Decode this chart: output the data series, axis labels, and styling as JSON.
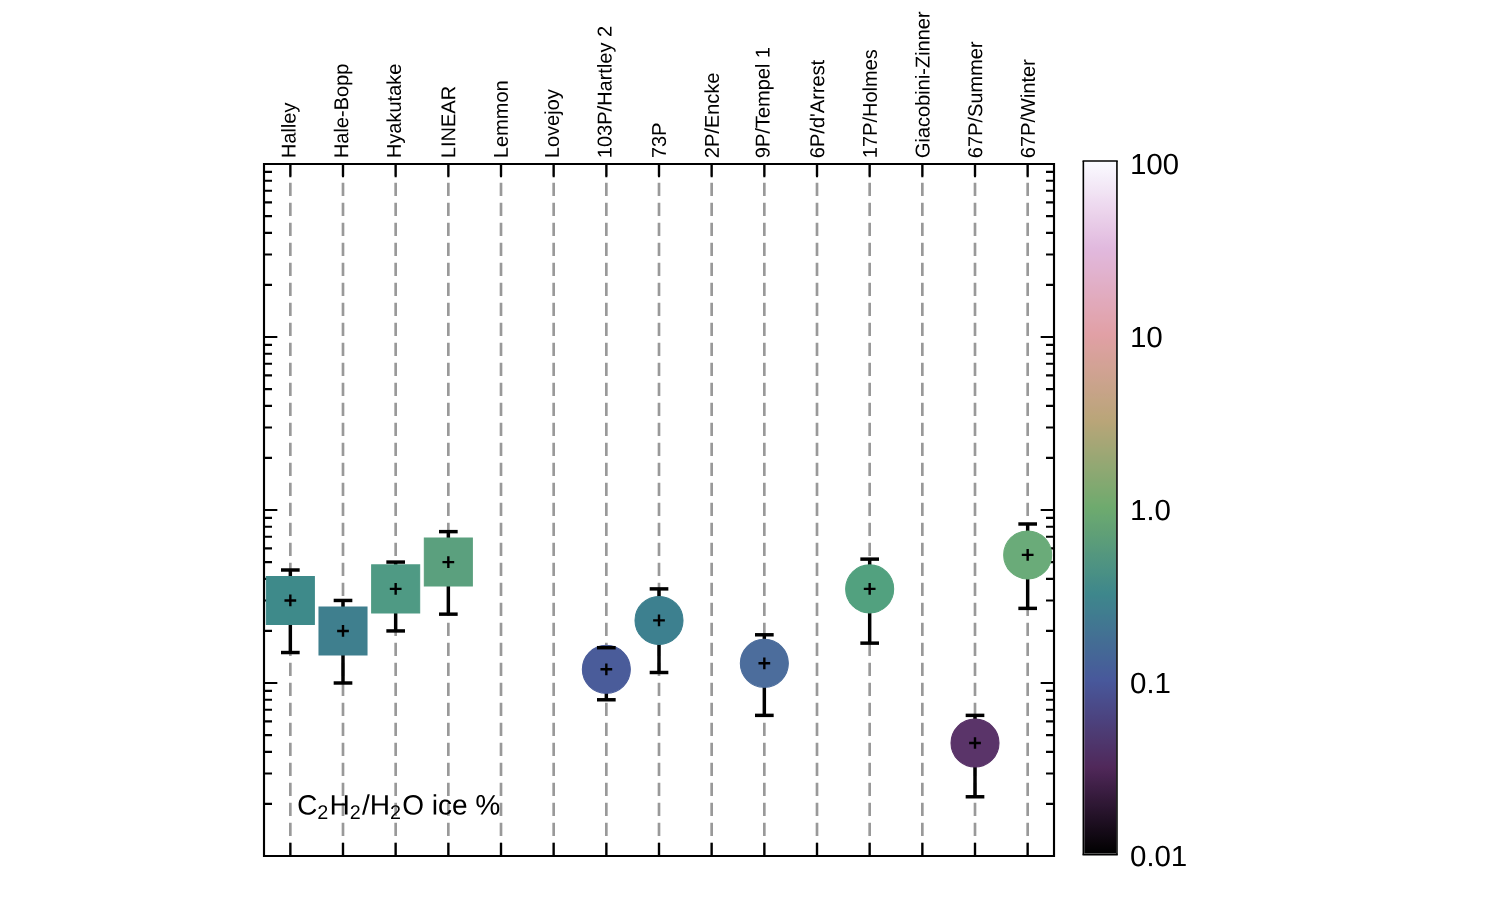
{
  "chart_data": {
    "type": "scatter",
    "categories": [
      "Halley",
      "Hale-Bopp",
      "Hyakutake",
      "LINEAR",
      "Lemmon",
      "Lovejoy",
      "103P/Hartley 2",
      "73P",
      "2P/Encke",
      "9P/Tempel 1",
      "6P/d'Arrest",
      "17P/Holmes",
      "Giacobini-Zinner",
      "67P/Summer",
      "67P/Winter"
    ],
    "y2lim": [
      0.01,
      100
    ],
    "y2ticks": [
      0.01,
      0.1,
      {
        "value": 1,
        "label": "1.0"
      },
      10,
      100
    ],
    "log": "y2",
    "grid": "x",
    "annotations": [
      "C$_{2}$H$_{2}$/H$_{2}$O ice %"
    ],
    "series": [
      {
        "marker": "square",
        "axis": "y2",
        "values": [
          0.3,
          0.2,
          0.35,
          0.5,
          null,
          null,
          null,
          null,
          null,
          null,
          null,
          null,
          null,
          null,
          null
        ],
        "colors": [
          "#3e8a8a",
          "#3f7f8e",
          "#4f9a84",
          "#5ba07e",
          null,
          null,
          null,
          null,
          null,
          null,
          null,
          null,
          null,
          null,
          null
        ],
        "errors": [
          [
            0.15,
            0.45
          ],
          [
            0.1,
            0.3
          ],
          [
            0.2,
            0.5
          ],
          [
            0.25,
            0.75
          ],
          null,
          null,
          null,
          null,
          null,
          null,
          null,
          null,
          null,
          null,
          null
        ]
      },
      {
        "marker": "circle",
        "axis": "y2",
        "values": [
          null,
          null,
          null,
          null,
          null,
          null,
          0.12,
          0.23,
          null,
          0.13,
          null,
          0.35,
          null,
          0.045,
          0.55
        ],
        "colors": [
          null,
          null,
          null,
          null,
          null,
          null,
          "#4a5c9a",
          "#3d808f",
          null,
          "#4c6d9c",
          null,
          "#52a17f",
          null,
          "#5a3469",
          "#6aab79"
        ],
        "errors": [
          null,
          null,
          null,
          null,
          null,
          null,
          [
            0.08,
            0.16
          ],
          [
            0.115,
            0.35
          ],
          null,
          [
            0.065,
            0.19
          ],
          null,
          [
            0.17,
            0.52
          ],
          null,
          [
            0.022,
            0.065
          ],
          [
            0.27,
            0.83
          ]
        ]
      }
    ]
  }
}
